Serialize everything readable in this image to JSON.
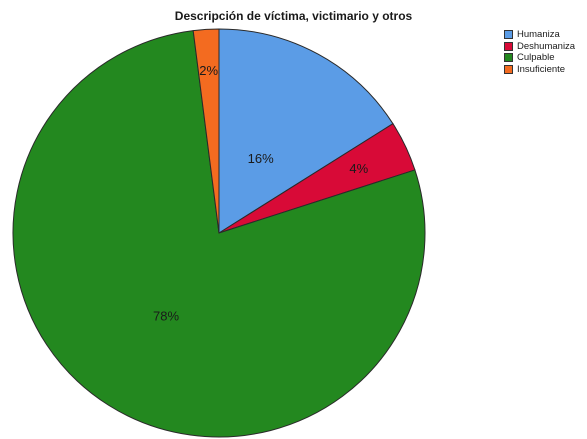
{
  "chart_data": {
    "type": "pie",
    "title": "Descripción de víctima, victimario y otros",
    "slices": [
      {
        "label": "Humaniza",
        "value": 16,
        "color": "#5b9ce6",
        "data_label": "16%"
      },
      {
        "label": "Deshumaniza",
        "value": 4,
        "color": "#d80a37",
        "data_label": "4%"
      },
      {
        "label": "Culpable",
        "value": 78,
        "color": "#23881f",
        "data_label": "78%"
      },
      {
        "label": "Insuficiente",
        "value": 2,
        "color": "#f36b20",
        "data_label": "2%"
      }
    ],
    "start_angle": "12 o'clock",
    "direction": "clockwise",
    "legend_position": "top-right"
  }
}
